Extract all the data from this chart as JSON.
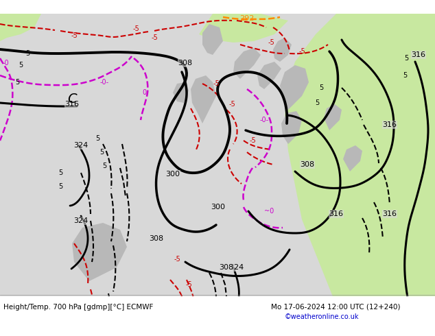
{
  "title_left": "Height/Temp. 700 hPa [gdmp][°C] ECMWF",
  "title_right": "Mo 17-06-2024 12:00 UTC (12+240)",
  "credit": "©weatheronline.co.uk",
  "figsize": [
    6.34,
    4.9
  ],
  "dpi": 100
}
